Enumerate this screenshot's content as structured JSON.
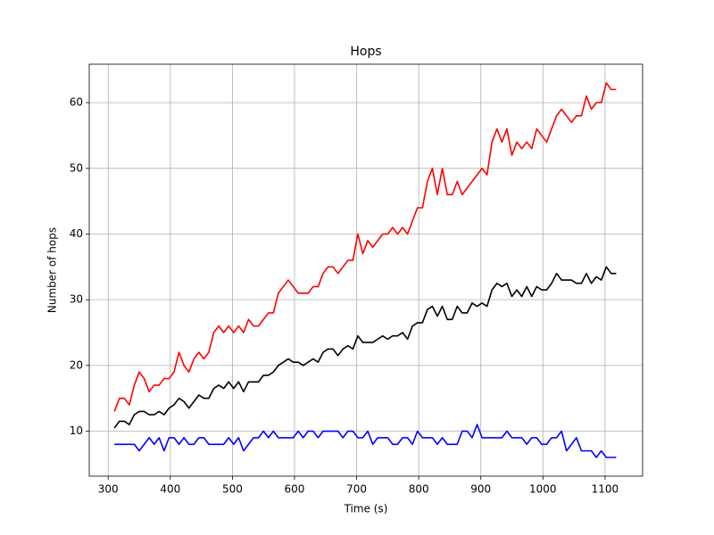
{
  "chart_data": {
    "type": "line",
    "title": "Hops",
    "xlabel": "Time (s)",
    "ylabel": "Number of hops",
    "x": [
      310,
      318,
      326,
      334,
      342,
      350,
      358,
      366,
      374,
      382,
      390,
      398,
      406,
      414,
      422,
      430,
      438,
      446,
      454,
      462,
      470,
      478,
      486,
      494,
      502,
      510,
      518,
      526,
      534,
      542,
      550,
      558,
      566,
      574,
      582,
      590,
      598,
      606,
      614,
      622,
      630,
      638,
      646,
      654,
      662,
      670,
      678,
      686,
      694,
      702,
      710,
      718,
      726,
      734,
      742,
      750,
      758,
      766,
      774,
      782,
      790,
      798,
      806,
      814,
      822,
      830,
      838,
      846,
      854,
      862,
      870,
      878,
      886,
      894,
      902,
      910,
      918,
      926,
      934,
      942,
      950,
      958,
      966,
      974,
      982,
      990,
      998,
      1006,
      1014,
      1022,
      1030,
      1038,
      1046,
      1054,
      1062,
      1070,
      1078,
      1086,
      1094,
      1102,
      1110,
      1118
    ],
    "series": [
      {
        "color": "#ff0000",
        "values": [
          13,
          15,
          15,
          14,
          17,
          19,
          18,
          16,
          17,
          17,
          18,
          18,
          19,
          22,
          20,
          19,
          21,
          22,
          21,
          22,
          25,
          26,
          25,
          26,
          25,
          26,
          25,
          27,
          26,
          26,
          27,
          28,
          28,
          31,
          32,
          33,
          32,
          31,
          31,
          31,
          32,
          32,
          34,
          35,
          35,
          34,
          35,
          36,
          36,
          40,
          37,
          39,
          38,
          39,
          40,
          40,
          41,
          40,
          41,
          40,
          42,
          44,
          44,
          48,
          50,
          46,
          50,
          46,
          46,
          48,
          46,
          47,
          48,
          49,
          50,
          49,
          54,
          56,
          54,
          56,
          52,
          54,
          53,
          54,
          53,
          56,
          55,
          54,
          56,
          58,
          59,
          58,
          57,
          58,
          58,
          61,
          59,
          60,
          60,
          63,
          62,
          62
        ]
      },
      {
        "color": "#000000",
        "values": [
          10.5,
          11.5,
          11.5,
          11,
          12.5,
          13,
          13,
          12.5,
          12.5,
          13,
          12.5,
          13.5,
          14,
          15,
          14.5,
          13.5,
          14.5,
          15.5,
          15,
          15,
          16.5,
          17,
          16.5,
          17.5,
          16.5,
          17.5,
          16,
          17.5,
          17.5,
          17.5,
          18.5,
          18.5,
          19,
          20,
          20.5,
          21,
          20.5,
          20.5,
          20,
          20.5,
          21,
          20.5,
          22,
          22.5,
          22.5,
          21.5,
          22.5,
          23,
          22.5,
          24.5,
          23.5,
          23.5,
          23.5,
          24,
          24.5,
          24,
          24.5,
          24.5,
          25,
          24,
          26,
          26.5,
          26.5,
          28.5,
          29,
          27.5,
          29,
          27,
          27,
          29,
          28,
          28,
          29.5,
          29,
          29.5,
          29,
          31.5,
          32.5,
          32,
          32.5,
          30.5,
          31.5,
          30.5,
          32,
          30.5,
          32,
          31.5,
          31.5,
          32.5,
          34,
          33,
          33,
          33,
          32.5,
          32.5,
          34,
          32.5,
          33.5,
          33,
          35,
          34,
          34
        ]
      },
      {
        "color": "#0000ff",
        "values": [
          8,
          8,
          8,
          8,
          8,
          7,
          8,
          9,
          8,
          9,
          7,
          9,
          9,
          8,
          9,
          8,
          8,
          9,
          9,
          8,
          8,
          8,
          8,
          9,
          8,
          9,
          7,
          8,
          9,
          9,
          10,
          9,
          10,
          9,
          9,
          9,
          9,
          10,
          9,
          10,
          10,
          9,
          10,
          10,
          10,
          10,
          9,
          10,
          10,
          9,
          9,
          10,
          8,
          9,
          9,
          9,
          8,
          8,
          9,
          9,
          8,
          10,
          9,
          9,
          9,
          8,
          9,
          8,
          8,
          8,
          10,
          10,
          9,
          11,
          9,
          9,
          9,
          9,
          9,
          10,
          9,
          9,
          9,
          8,
          9,
          9,
          8,
          8,
          9,
          9,
          10,
          7,
          8,
          9,
          7,
          7,
          7,
          6,
          7,
          6,
          6,
          6
        ]
      }
    ],
    "xlim": [
      269.5,
      1160.5
    ],
    "ylim": [
      3.15,
      65.85
    ],
    "xticks": [
      300,
      400,
      500,
      600,
      700,
      800,
      900,
      1000,
      1100
    ],
    "yticks": [
      10,
      20,
      30,
      40,
      50,
      60
    ],
    "grid": true
  }
}
